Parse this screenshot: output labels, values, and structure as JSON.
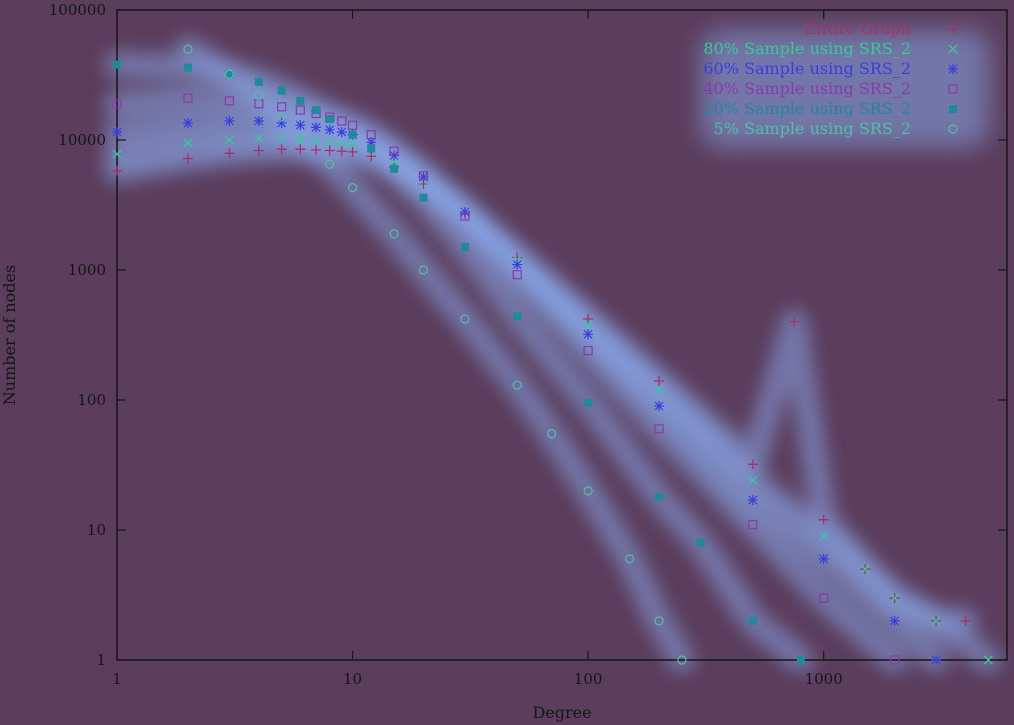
{
  "chart_data": {
    "type": "scatter",
    "title": "",
    "xlabel": "Degree",
    "ylabel": "Number of nodes",
    "xscale": "log",
    "yscale": "log",
    "xlim": [
      1,
      6000
    ],
    "ylim": [
      1,
      100000
    ],
    "x_ticks": [
      1,
      10,
      100,
      1000
    ],
    "x_tick_labels": [
      "1",
      "10",
      "100",
      "1000"
    ],
    "y_ticks": [
      1,
      10,
      100,
      1000,
      10000,
      100000
    ],
    "y_tick_labels": [
      "1",
      "10",
      "100",
      "1000",
      "10000",
      "100000"
    ],
    "legend_position": "top-right",
    "colors": {
      "background": "#5b3d5c",
      "axis": "#161616",
      "glow": "#8fb8ff"
    },
    "series": [
      {
        "name": "Entire Graph",
        "marker": "plus",
        "color": "#a8306a",
        "x": [
          1,
          2,
          3,
          4,
          5,
          6,
          7,
          8,
          9,
          10,
          12,
          15,
          20,
          30,
          50,
          100,
          200,
          500,
          750,
          1000,
          1500,
          2000,
          3000,
          4000
        ],
        "y": [
          5800,
          7200,
          7900,
          8300,
          8500,
          8500,
          8400,
          8300,
          8200,
          8100,
          7500,
          6200,
          4600,
          2700,
          1250,
          420,
          140,
          32,
          400,
          12,
          5,
          3,
          2,
          2
        ]
      },
      {
        "name": "80% Sample using SRS_2",
        "marker": "cross",
        "color": "#33cc99",
        "x": [
          1,
          2,
          3,
          4,
          5,
          6,
          7,
          8,
          9,
          10,
          12,
          15,
          20,
          30,
          50,
          100,
          200,
          500,
          1000,
          1500,
          2000,
          3000,
          5000
        ],
        "y": [
          7800,
          9500,
          10000,
          10300,
          10300,
          10000,
          9800,
          9600,
          9400,
          9200,
          8400,
          6800,
          4900,
          2800,
          1200,
          380,
          120,
          24,
          9,
          5,
          3,
          2,
          1
        ]
      },
      {
        "name": "60% Sample using SRS_2",
        "marker": "star",
        "color": "#3a3ee0",
        "x": [
          1,
          2,
          3,
          4,
          5,
          6,
          7,
          8,
          9,
          10,
          12,
          15,
          20,
          30,
          50,
          100,
          200,
          500,
          1000,
          2000,
          3000
        ],
        "y": [
          11500,
          13500,
          14000,
          14000,
          13500,
          13000,
          12500,
          12000,
          11500,
          11000,
          9600,
          7600,
          5200,
          2800,
          1100,
          320,
          90,
          17,
          6,
          2,
          1
        ]
      },
      {
        "name": "40% Sample using SRS_2",
        "marker": "square-open",
        "color": "#8a3aa8",
        "x": [
          1,
          2,
          3,
          4,
          5,
          6,
          7,
          8,
          9,
          10,
          12,
          15,
          20,
          30,
          50,
          100,
          200,
          500,
          1000,
          2000
        ],
        "y": [
          19000,
          21000,
          20000,
          19000,
          18000,
          17000,
          16000,
          15000,
          14000,
          13000,
          11000,
          8200,
          5300,
          2600,
          920,
          240,
          60,
          11,
          3,
          1
        ]
      },
      {
        "name": "20% Sample using SRS_2",
        "marker": "square-filled",
        "color": "#1f8a9a",
        "x": [
          1,
          2,
          3,
          4,
          5,
          6,
          7,
          8,
          10,
          12,
          15,
          20,
          30,
          50,
          100,
          200,
          300,
          500,
          800
        ],
        "y": [
          38000,
          36000,
          32000,
          28000,
          24000,
          20000,
          17000,
          14500,
          11000,
          8600,
          6000,
          3600,
          1500,
          440,
          95,
          18,
          8,
          2,
          1
        ]
      },
      {
        "name": "5% Sample using SRS_2",
        "marker": "circle-open",
        "color": "#4fc0a6",
        "x": [
          2,
          3,
          4,
          5,
          6,
          8,
          10,
          15,
          20,
          30,
          50,
          70,
          100,
          150,
          200,
          250
        ],
        "y": [
          50000,
          32000,
          22000,
          15000,
          10500,
          6500,
          4300,
          1900,
          1000,
          420,
          130,
          55,
          20,
          6,
          2,
          1
        ]
      }
    ]
  }
}
